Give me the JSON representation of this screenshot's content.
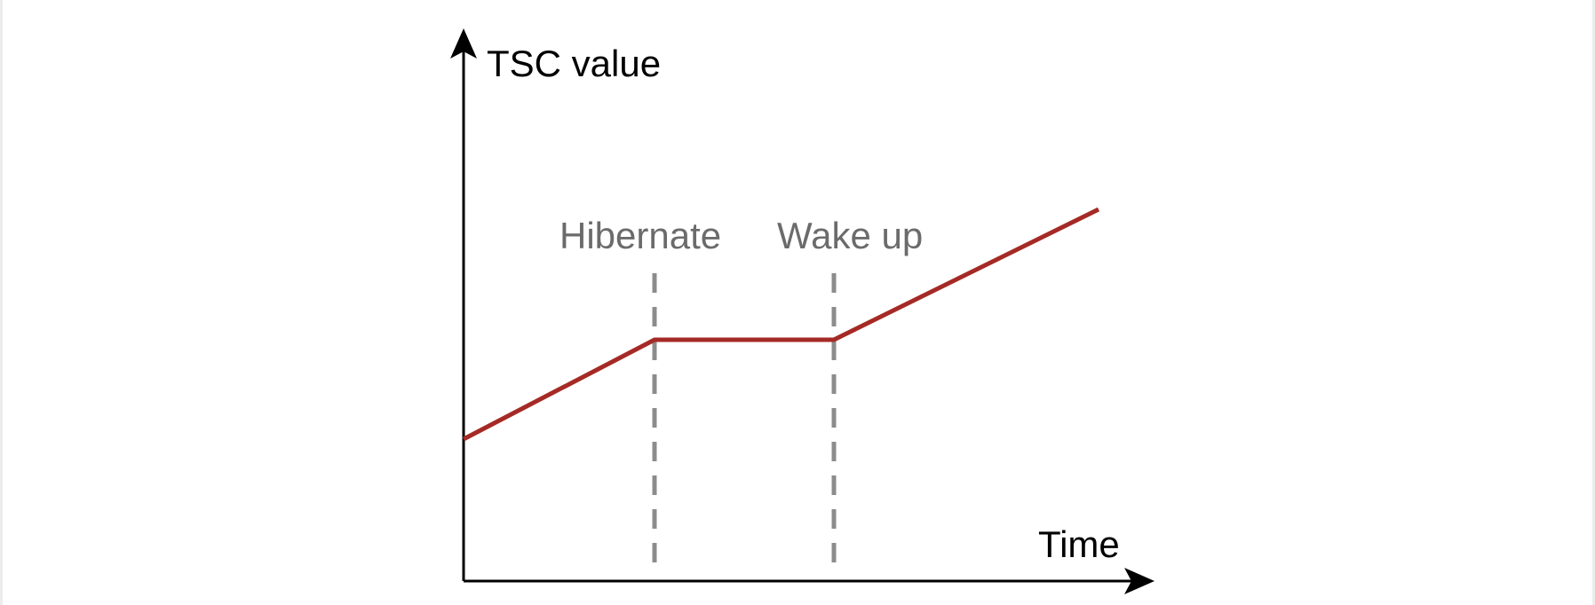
{
  "diagram": {
    "y_axis_label": "TSC value",
    "x_axis_label": "Time",
    "events": [
      {
        "label": "Hibernate"
      },
      {
        "label": "Wake up"
      }
    ],
    "colors": {
      "axis": "#000000",
      "tsc_line": "#a52a25",
      "event_marker": "#8c8c8c",
      "event_label": "#6b6b6b"
    }
  }
}
